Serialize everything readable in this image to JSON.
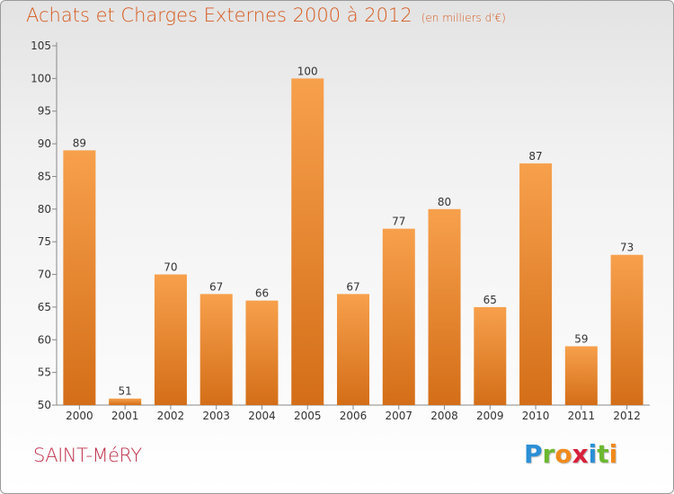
{
  "title": "Achats et Charges Externes 2000 à 2012",
  "subtitle": "(en milliers d'€)",
  "commune": "SAINT-MéRY",
  "logo": {
    "letters": [
      "P",
      "r",
      "o",
      "x",
      "i",
      "t",
      "i"
    ],
    "colors": [
      "#2a8fd6",
      "#6cb830",
      "#f08a1c",
      "#d8203a",
      "#2a8fd6",
      "#6cb830",
      "#f08a1c"
    ]
  },
  "colors": {
    "bar_light": "#f7a04c",
    "bar_dark": "#d46e18",
    "title": "#d65a1e"
  },
  "chart_data": {
    "type": "bar",
    "categories": [
      "2000",
      "2001",
      "2002",
      "2003",
      "2004",
      "2005",
      "2006",
      "2007",
      "2008",
      "2009",
      "2010",
      "2011",
      "2012"
    ],
    "values": [
      89,
      51,
      70,
      67,
      66,
      100,
      67,
      77,
      80,
      65,
      87,
      59,
      73
    ],
    "ylim": [
      50,
      105
    ],
    "yticks": [
      50,
      55,
      60,
      65,
      70,
      75,
      80,
      85,
      90,
      95,
      100,
      105
    ],
    "grid": false,
    "legend": "none"
  }
}
